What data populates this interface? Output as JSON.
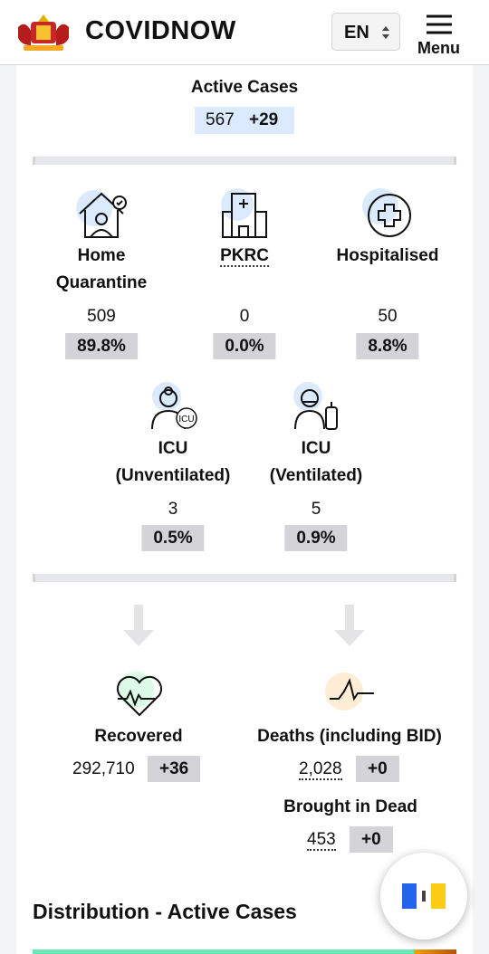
{
  "header": {
    "brand": "COVIDNOW",
    "language": "EN",
    "menu": "Menu"
  },
  "active_cases": {
    "title": "Active Cases",
    "value": "567",
    "change": "+29"
  },
  "categories": [
    {
      "label": "Home Quarantine",
      "value": "509",
      "percent": "89.8%"
    },
    {
      "label": "PKRC",
      "value": "0",
      "percent": "0.0%"
    },
    {
      "label": "Hospitalised",
      "value": "50",
      "percent": "8.8%"
    },
    {
      "label": "ICU (Unventilated)",
      "value": "3",
      "percent": "0.5%"
    },
    {
      "label": "ICU (Ventilated)",
      "value": "5",
      "percent": "0.9%"
    }
  ],
  "icu_icon_label": "ICU",
  "outcomes": {
    "recovered": {
      "label": "Recovered",
      "value": "292,710",
      "change": "+36"
    },
    "deaths": {
      "label": "Deaths (including BID)",
      "value": "2,028",
      "change": "+0"
    },
    "brought_in_dead": {
      "label": "Brought in Dead",
      "value": "453",
      "change": "+0"
    }
  },
  "distribution": {
    "title": "Distribution - Active Cases"
  }
}
